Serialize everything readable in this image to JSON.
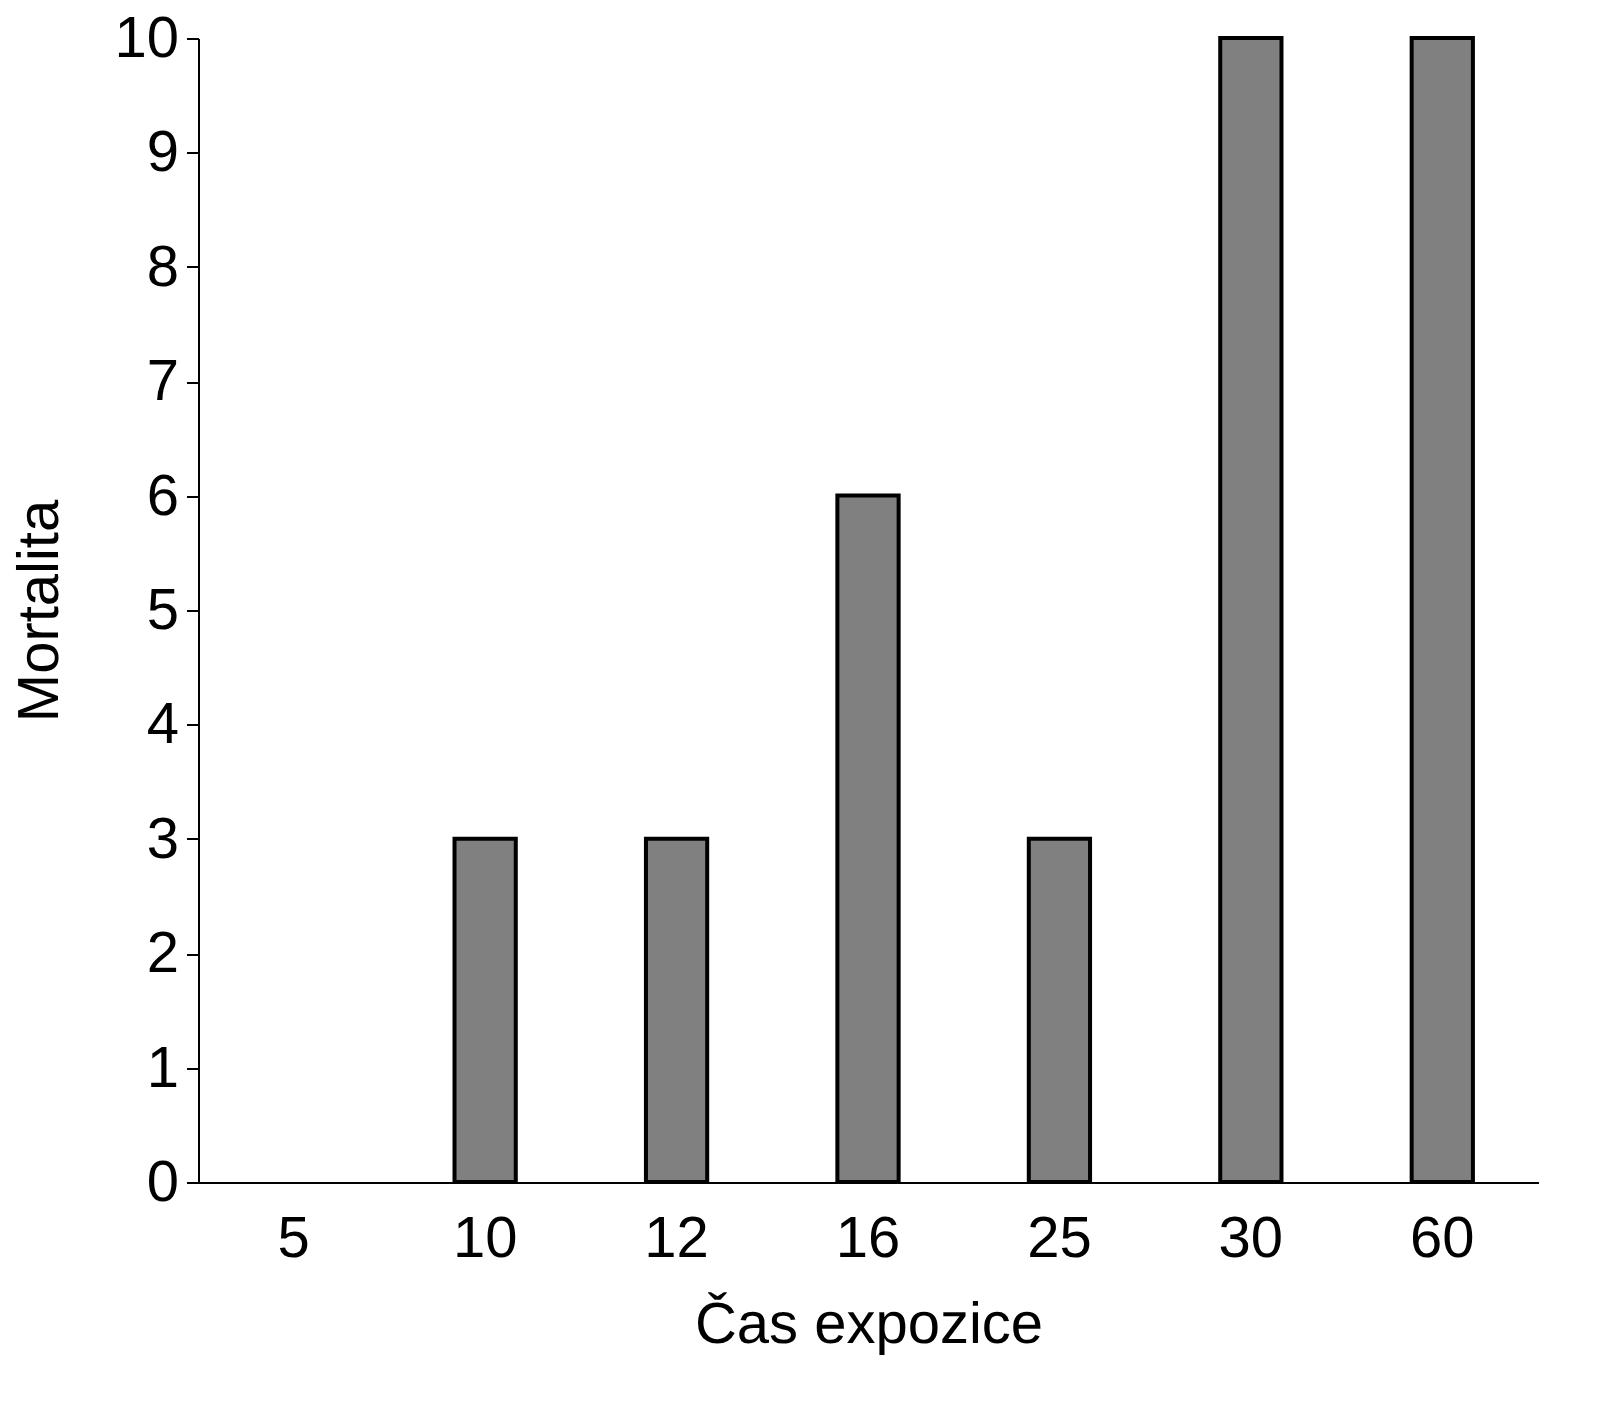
{
  "chart_data": {
    "type": "bar",
    "xlabel": "Čas expozice",
    "ylabel": "Mortalita",
    "categories": [
      "5",
      "10",
      "12",
      "16",
      "25",
      "30",
      "60"
    ],
    "values": [
      0,
      3,
      3,
      6,
      3,
      10,
      10
    ],
    "color": "#808080",
    "ylim": [
      0,
      10
    ],
    "yticks": [
      0,
      1,
      2,
      3,
      4,
      5,
      6,
      7,
      8,
      9,
      10
    ],
    "grid": false
  }
}
